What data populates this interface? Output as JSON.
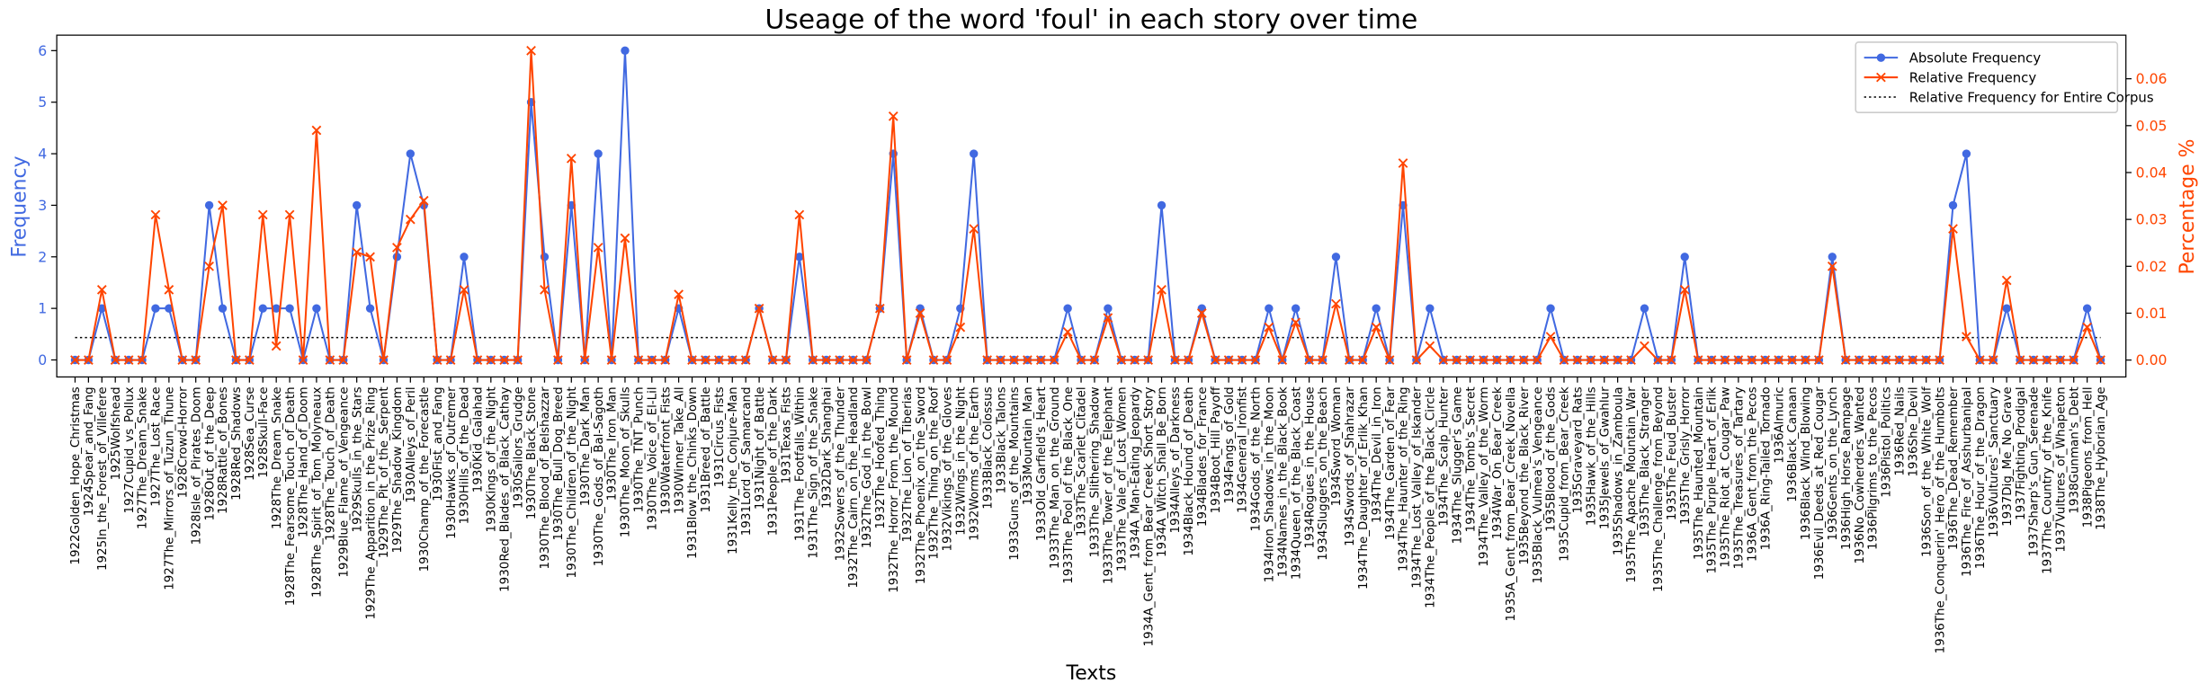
{
  "chart_data": {
    "type": "line",
    "title": "Useage of the word 'foul' in each story over time",
    "x_label": "Texts",
    "y_label": "Frequency",
    "y2_label": "Percentage %",
    "categories": [
      "1922Golden_Hope_Christmas",
      "1924Spear_and_Fang",
      "1925In_the_Forest_of_Villefere",
      "1925Wolfshead",
      "1927Cupid_vs_Pollux",
      "1927The_Dream_Snake",
      "1927The_Lost_Race",
      "1927The_Mirrors_of_Tuzun_Thune",
      "1928Crowd-Horror",
      "1928Isle_of_Pirates_Doom",
      "1928Out_of_the_Deep",
      "1928Rattle_of_Bones",
      "1928Red_Shadows",
      "1928Sea_Curse",
      "1928Skull-Face",
      "1928The_Dream_Snake",
      "1928The_Fearsome_Touch_of_Death",
      "1928The_Hand_of_Doom",
      "1928The_Spirit_of_Tom_Molyneaux",
      "1928The_Touch_of_Death",
      "1929Blue_Flame_of_Vengeance",
      "1929Skulls_in_the_Stars",
      "1929The_Apparition_in_the_Prize_Ring",
      "1929The_Pit_of_the_Serpent",
      "1929The_Shadow_Kingdom",
      "1930Alleys_of_Peril",
      "1930Champ_of_the_Forecastle",
      "1930Fist_and_Fang",
      "1930Hawks_of_Outremer",
      "1930Hills_of_the_Dead",
      "1930Kid_Galahad",
      "1930Kings_of_the_Night",
      "1930Red_Blades_of_Black_Cathay",
      "1930Sailors_Grudge",
      "1930The_Black_Stone",
      "1930The_Blood_of_Belshazzar",
      "1930The_Bull_Dog_Breed",
      "1930The_Children_of_the_Night",
      "1930The_Dark_Man",
      "1930The_Gods_of_Bal-Sagoth",
      "1930The_Iron_Man",
      "1930The_Moon_of_Skulls",
      "1930The_TNT_Punch",
      "1930The_Voice_of_El-Lil",
      "1930Waterfront_Fists",
      "1930Winner_Take_All",
      "1931Blow_the_Chinks_Down",
      "1931Breed_of_Battle",
      "1931Circus_Fists",
      "1931Kelly_the_Conjure-Man",
      "1931Lord_of_Samarcand",
      "1931Night_of_Battle",
      "1931People_of_the_Dark",
      "1931Texas_Fists",
      "1931The_Footfalls_Within",
      "1931The_Sign_of_the_Snake",
      "1932Dark_Shanghai",
      "1932Sowers_of_the_Thunder",
      "1932The_Cairn_on_the_Headland",
      "1932The_God_in_the_Bowl",
      "1932The_Hoofed_Thing",
      "1932The_Horror_From_the_Mound",
      "1932The_Lion_of_Tiberias",
      "1932The_Phoenix_on_the_Sword",
      "1932The_Thing_on_the_Roof",
      "1932Vikings_of_the_Gloves",
      "1932Wings_in_the_Night",
      "1932Worms_of_the_Earth",
      "1933Black_Colossus",
      "1933Black_Talons",
      "1933Guns_of_the_Mountains",
      "1933Mountain_Man",
      "1933Old_Garfield's_Heart",
      "1933The_Man_on_the_Ground",
      "1933The_Pool_of_the_Black_One",
      "1933The_Scarlet_Citadel",
      "1933The_Slithering_Shadow",
      "1933The_Tower_of_the_Elephant",
      "1933The_Vale_of_Lost_Women",
      "1934A_Man-Eating_Jeopardy",
      "1934A_Gent_from_Bear_Creek_Short_Story",
      "1934A_Witch_Shall_Be_Born",
      "1934Alleys_of_Darkness",
      "1934Black_Hound_of_Death",
      "1934Blades_for_France",
      "1934Boot_Hill_Payoff",
      "1934Fangs_of_Gold",
      "1934General_Ironfist",
      "1934Gods_of_the_North",
      "1934Iron_Shadows_in_the_Moon",
      "1934Names_in_the_Black_Book",
      "1934Queen_of_the_Black_Coast",
      "1934Rogues_in_the_House",
      "1934Sluggers_on_the_Beach",
      "1934Sword_Woman",
      "1934Swords_of_Shahrazar",
      "1934The_Daughter_of_Erlik_Khan",
      "1934The_Devil_in_Iron",
      "1934The_Garden_of_Fear",
      "1934The_Haunter_of_the_Ring",
      "1934The_Lost_Valley_of_Iskander",
      "1934The_People_of_the_Black_Circle",
      "1934The_Scalp_Hunter",
      "1934The_Slugger's_Game",
      "1934The_Tomb's_Secret",
      "1934The_Valley_of_the_Worm",
      "1934War_On_Bear_Creek",
      "1935A_Gent_from_Bear_Creek_Novella",
      "1935Beyond_the_Black_River",
      "1935Black_Vulmea's_Vengeance",
      "1935Blood_of_the_Gods",
      "1935Cupid_from_Bear_Creek",
      "1935Graveyard_Rats",
      "1935Hawk_of_the_Hills",
      "1935Jewels_of_Gwahlur",
      "1935Shadows_in_Zamboula",
      "1935The_Apache_Mountain_War",
      "1935The_Black_Stranger",
      "1935The_Challenge_from_Beyond",
      "1935The_Feud_Buster",
      "1935The_Grisly_Horror",
      "1935The_Haunted_Mountain",
      "1935The_Purple_Heart_of_Erlik",
      "1935The_Riot_at_Cougar_Paw",
      "1935The_Treasures_of_Tartary",
      "1936A_Gent_from_the_Pecos",
      "1936A_Ring-Tailed_Tornado",
      "1936Almuric",
      "1936Black_Canaan",
      "1936Black_Wind_Blowing",
      "1936Evil_Deeds_at_Red_Cougar",
      "1936Gents_on_the_Lynch",
      "1936High_Horse_Rampage",
      "1936No_Cowherders_Wanted",
      "1936Pilgrims_to_the_Pecos",
      "1936Pistol_Politics",
      "1936Red_Nails",
      "1936She_Devil",
      "1936Son_of_the_White_Wolf",
      "1936The_Conquerin'_Hero_of_the_Humbolts",
      "1936The_Dead_Remember",
      "1936The_Fire_of_Asshurbanipal",
      "1936The_Hour_of_the_Dragon",
      "1936Vultures'_Sanctuary",
      "1937Dig_Me_No_Grave",
      "1937Fighting_Prodigal",
      "1937Sharp's_Gun_Serenade",
      "1937The_Country_of_the_Knife",
      "1937Vultures_of_Whapeton",
      "1938Gunman's_Debt",
      "1938Pigeons_from_Hell",
      "1938The_Hyborian_Age"
    ],
    "series": [
      {
        "name": "Absolute Frequency",
        "color": "#4169e1",
        "marker": "circle",
        "axis": "y",
        "values": [
          0,
          0,
          1,
          0,
          0,
          0,
          1,
          1,
          0,
          0,
          3,
          1,
          0,
          0,
          1,
          1,
          1,
          0,
          1,
          0,
          0,
          3,
          1,
          0,
          2,
          4,
          3,
          0,
          0,
          2,
          0,
          0,
          0,
          0,
          5,
          2,
          0,
          3,
          0,
          4,
          0,
          6,
          0,
          0,
          0,
          1,
          0,
          0,
          0,
          0,
          0,
          1,
          0,
          0,
          2,
          0,
          0,
          0,
          0,
          0,
          1,
          4,
          0,
          1,
          0,
          0,
          1,
          4,
          0,
          0,
          0,
          0,
          0,
          0,
          1,
          0,
          0,
          1,
          0,
          0,
          0,
          3,
          0,
          0,
          1,
          0,
          0,
          0,
          0,
          1,
          0,
          1,
          0,
          0,
          2,
          0,
          0,
          1,
          0,
          3,
          0,
          1,
          0,
          0,
          0,
          0,
          0,
          0,
          0,
          0,
          1,
          0,
          0,
          0,
          0,
          0,
          0,
          1,
          0,
          0,
          2,
          0,
          0,
          0,
          0,
          0,
          0,
          0,
          0,
          0,
          0,
          2,
          0,
          0,
          0,
          0,
          0,
          0,
          0,
          0,
          3,
          4,
          0,
          0,
          1,
          0,
          0,
          0,
          0,
          0,
          1,
          0
        ]
      },
      {
        "name": "Relative Frequency",
        "color": "#ff4500",
        "marker": "x",
        "axis": "y2",
        "values": [
          0,
          0,
          0.015,
          0,
          0,
          0,
          0.031,
          0.015,
          0,
          0,
          0.02,
          0.033,
          0,
          0,
          0.031,
          0.003,
          0.031,
          0,
          0.049,
          0,
          0,
          0.023,
          0.022,
          0,
          0.024,
          0.03,
          0.034,
          0,
          0,
          0.015,
          0,
          0,
          0,
          0,
          0.066,
          0.015,
          0,
          0.043,
          0,
          0.024,
          0,
          0.026,
          0,
          0,
          0,
          0.014,
          0,
          0,
          0,
          0,
          0,
          0.011,
          0,
          0,
          0.031,
          0,
          0,
          0,
          0,
          0,
          0.011,
          0.052,
          0,
          0.01,
          0,
          0,
          0.007,
          0.028,
          0,
          0,
          0,
          0,
          0,
          0,
          0.006,
          0,
          0,
          0.009,
          0,
          0,
          0,
          0.015,
          0,
          0,
          0.01,
          0,
          0,
          0,
          0,
          0.007,
          0,
          0.008,
          0,
          0,
          0.012,
          0,
          0,
          0.007,
          0,
          0.042,
          0,
          0.003,
          0,
          0,
          0,
          0,
          0,
          0,
          0,
          0,
          0.005,
          0,
          0,
          0,
          0,
          0,
          0,
          0.003,
          0,
          0,
          0.015,
          0,
          0,
          0,
          0,
          0,
          0,
          0,
          0,
          0,
          0,
          0.02,
          0,
          0,
          0,
          0,
          0,
          0,
          0,
          0,
          0.028,
          0.005,
          0,
          0,
          0.017,
          0,
          0,
          0,
          0,
          0,
          0.007,
          0
        ]
      }
    ],
    "reference_lines": [
      {
        "name": "Relative Frequency for Entire Corpus",
        "value": 0.0048,
        "axis": "y2",
        "color": "#000000",
        "style": "dotted"
      }
    ],
    "ylim": [
      -0.33,
      6.3
    ],
    "yticks": [
      0,
      1,
      2,
      3,
      4,
      5,
      6
    ],
    "y2lim": [
      -0.0036,
      0.0693
    ],
    "y2ticks": [
      {
        "value": 0,
        "label": "0.00"
      },
      {
        "value": 0.01,
        "label": "0.01"
      },
      {
        "value": 0.02,
        "label": "0.02"
      },
      {
        "value": 0.03,
        "label": "0.03"
      },
      {
        "value": 0.04,
        "label": "0.04"
      },
      {
        "value": 0.05,
        "label": "0.05"
      },
      {
        "value": 0.06,
        "label": "0.06"
      }
    ],
    "legend": "upper right",
    "grid": false
  }
}
